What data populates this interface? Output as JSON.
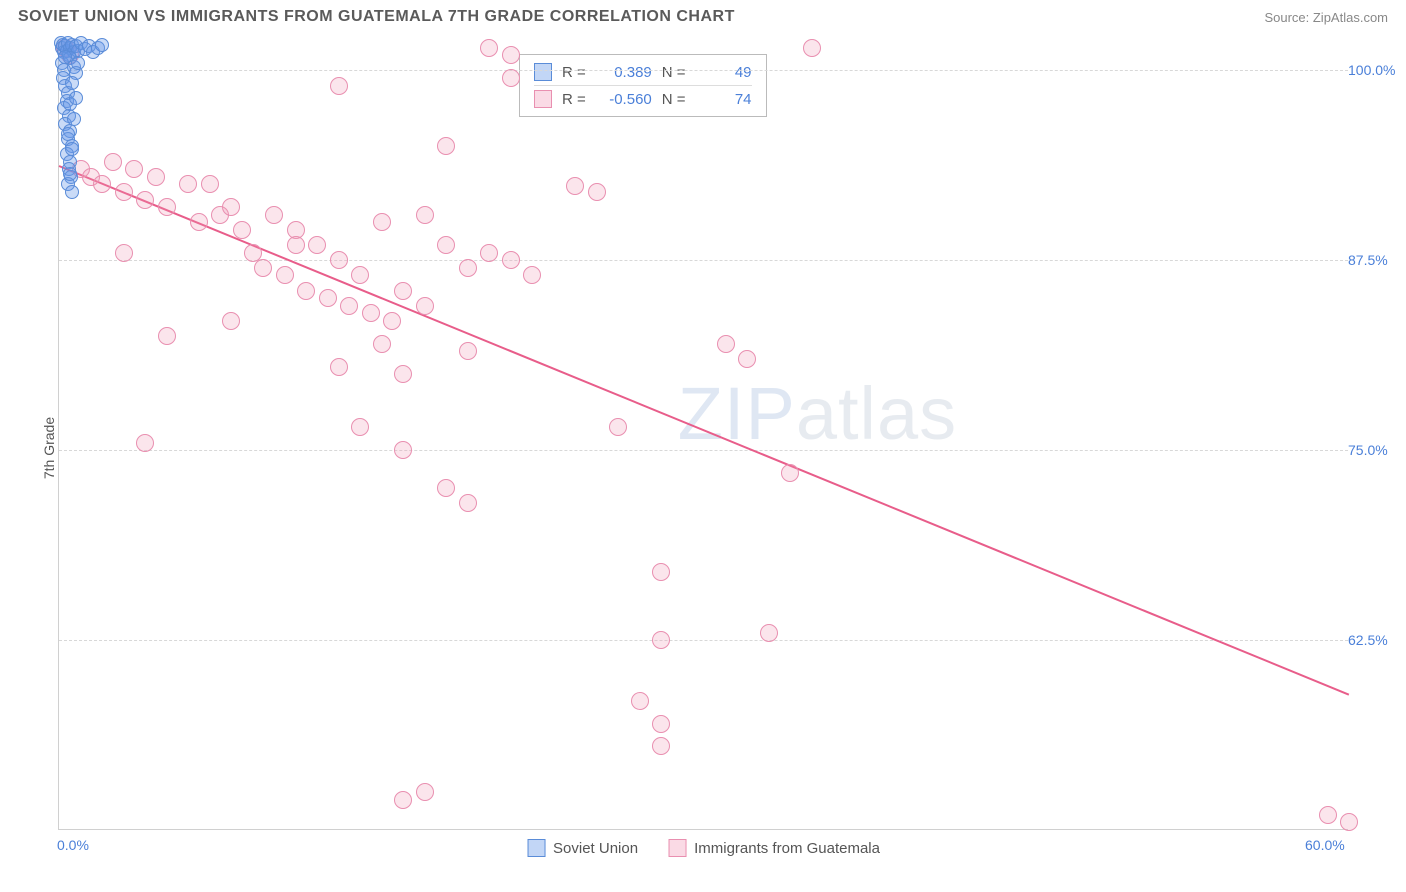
{
  "header": {
    "title": "SOVIET UNION VS IMMIGRANTS FROM GUATEMALA 7TH GRADE CORRELATION CHART",
    "source": "Source: ZipAtlas.com"
  },
  "chart": {
    "type": "scatter",
    "y_axis_title": "7th Grade",
    "xlim": [
      0,
      60
    ],
    "ylim": [
      50,
      102
    ],
    "x_ticks": [
      {
        "value": 0,
        "label": "0.0%"
      },
      {
        "value": 60,
        "label": "60.0%"
      }
    ],
    "y_ticks": [
      {
        "value": 62.5,
        "label": "62.5%"
      },
      {
        "value": 75.0,
        "label": "75.0%"
      },
      {
        "value": 87.5,
        "label": "87.5%"
      },
      {
        "value": 100.0,
        "label": "100.0%"
      }
    ],
    "grid_color": "#d8d8d8",
    "background_color": "#ffffff",
    "axis_line_color": "#d0d0d0",
    "tick_label_color": "#4a7fd8",
    "tick_fontsize": 14,
    "axis_title_fontsize": 14,
    "series": {
      "soviet": {
        "label": "Soviet Union",
        "fill_color": "rgba(102,153,232,0.35)",
        "stroke_color": "#5a8cd8",
        "marker_size": 14,
        "R": "0.389",
        "N": "49",
        "points": [
          [
            0.1,
            101.8
          ],
          [
            0.15,
            101.5
          ],
          [
            0.2,
            101.7
          ],
          [
            0.25,
            101.2
          ],
          [
            0.3,
            101.6
          ],
          [
            0.35,
            101.3
          ],
          [
            0.4,
            101.8
          ],
          [
            0.45,
            101.0
          ],
          [
            0.5,
            101.5
          ],
          [
            0.6,
            101.7
          ],
          [
            0.7,
            101.2
          ],
          [
            0.8,
            101.6
          ],
          [
            0.9,
            101.3
          ],
          [
            1.0,
            101.8
          ],
          [
            1.2,
            101.4
          ],
          [
            1.4,
            101.6
          ],
          [
            1.6,
            101.2
          ],
          [
            1.8,
            101.5
          ],
          [
            2.0,
            101.7
          ],
          [
            0.15,
            100.5
          ],
          [
            0.25,
            100.0
          ],
          [
            0.2,
            99.5
          ],
          [
            0.3,
            99.0
          ],
          [
            0.4,
            98.5
          ],
          [
            0.35,
            98.0
          ],
          [
            0.25,
            97.5
          ],
          [
            0.45,
            97.0
          ],
          [
            0.3,
            96.5
          ],
          [
            0.5,
            96.0
          ],
          [
            0.4,
            95.5
          ],
          [
            0.6,
            95.0
          ],
          [
            0.35,
            94.5
          ],
          [
            0.5,
            94.0
          ],
          [
            0.45,
            93.5
          ],
          [
            0.55,
            93.0
          ],
          [
            0.4,
            92.5
          ],
          [
            0.6,
            92.0
          ],
          [
            0.5,
            100.8
          ],
          [
            0.7,
            100.2
          ],
          [
            0.8,
            99.8
          ],
          [
            0.3,
            100.9
          ],
          [
            0.6,
            99.2
          ],
          [
            0.9,
            100.5
          ],
          [
            0.5,
            97.8
          ],
          [
            0.7,
            96.8
          ],
          [
            0.4,
            95.8
          ],
          [
            0.8,
            98.2
          ],
          [
            0.6,
            94.8
          ],
          [
            0.5,
            93.2
          ]
        ]
      },
      "guatemala": {
        "label": "Immigrants from Guatemala",
        "fill_color": "rgba(240,150,180,0.25)",
        "stroke_color": "#e98fb0",
        "marker_size": 18,
        "R": "-0.560",
        "N": "74",
        "points": [
          [
            0.3,
            101.5
          ],
          [
            0.5,
            101.0
          ],
          [
            20,
            101.5
          ],
          [
            21,
            101.0
          ],
          [
            35,
            101.5
          ],
          [
            13,
            99.0
          ],
          [
            18,
            95.0
          ],
          [
            21,
            99.5
          ],
          [
            1,
            93.5
          ],
          [
            1.5,
            93.0
          ],
          [
            2,
            92.5
          ],
          [
            2.5,
            94.0
          ],
          [
            3,
            92.0
          ],
          [
            3.5,
            93.5
          ],
          [
            4,
            91.5
          ],
          [
            4.5,
            93.0
          ],
          [
            5,
            91.0
          ],
          [
            6,
            92.5
          ],
          [
            6.5,
            90.0
          ],
          [
            7,
            92.5
          ],
          [
            7.5,
            90.5
          ],
          [
            8,
            91.0
          ],
          [
            8.5,
            89.5
          ],
          [
            9,
            88.0
          ],
          [
            9.5,
            87.0
          ],
          [
            10,
            90.5
          ],
          [
            10.5,
            86.5
          ],
          [
            11,
            89.5
          ],
          [
            11.5,
            85.5
          ],
          [
            12,
            88.5
          ],
          [
            12.5,
            85.0
          ],
          [
            13,
            87.5
          ],
          [
            13.5,
            84.5
          ],
          [
            14,
            86.5
          ],
          [
            14.5,
            84.0
          ],
          [
            15,
            90.0
          ],
          [
            15.5,
            83.5
          ],
          [
            16,
            85.5
          ],
          [
            17,
            84.5
          ],
          [
            18,
            88.5
          ],
          [
            19,
            87.0
          ],
          [
            20,
            88.0
          ],
          [
            21,
            87.5
          ],
          [
            22,
            86.5
          ],
          [
            24,
            92.4
          ],
          [
            25,
            92.0
          ],
          [
            17,
            90.5
          ],
          [
            11,
            88.5
          ],
          [
            3,
            88.0
          ],
          [
            5,
            82.5
          ],
          [
            8,
            83.5
          ],
          [
            13,
            80.5
          ],
          [
            15,
            82.0
          ],
          [
            16,
            80.0
          ],
          [
            19,
            81.5
          ],
          [
            4,
            75.5
          ],
          [
            14,
            76.5
          ],
          [
            16,
            75.0
          ],
          [
            18,
            72.5
          ],
          [
            19,
            71.5
          ],
          [
            31,
            82.0
          ],
          [
            32,
            81.0
          ],
          [
            33,
            63.0
          ],
          [
            34,
            73.5
          ],
          [
            26,
            76.5
          ],
          [
            27,
            58.5
          ],
          [
            28,
            62.5
          ],
          [
            28,
            67.0
          ],
          [
            28,
            57.0
          ],
          [
            28,
            55.5
          ],
          [
            16,
            52.0
          ],
          [
            17,
            52.5
          ],
          [
            59,
            51.0
          ],
          [
            60,
            50.5
          ]
        ],
        "trend": {
          "x1": 0,
          "y1": 93.8,
          "x2": 60,
          "y2": 59.0,
          "color": "#e85d8a",
          "width": 2
        }
      }
    },
    "stats_box": {
      "rows": [
        {
          "swatch": "blue",
          "r_label": "R =",
          "r_val": "0.389",
          "n_label": "N =",
          "n_val": "49"
        },
        {
          "swatch": "pink",
          "r_label": "R =",
          "r_val": "-0.560",
          "n_label": "N =",
          "n_val": "74"
        }
      ]
    },
    "legend": [
      {
        "swatch": "blue",
        "label": "Soviet Union"
      },
      {
        "swatch": "pink",
        "label": "Immigrants from Guatemala"
      }
    ],
    "watermark": {
      "text_bold": "ZIP",
      "text_thin": "atlas"
    }
  }
}
